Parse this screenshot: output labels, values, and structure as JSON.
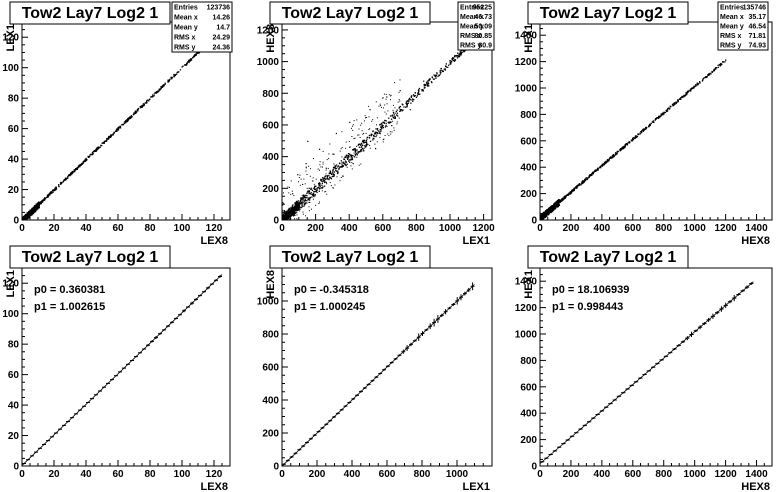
{
  "chart_data": [
    {
      "type": "scatter",
      "title": "Tow2 Lay7 Log2 1",
      "xlabel": "LEX8",
      "ylabel": "LEX1",
      "xlim": [
        0,
        130
      ],
      "ylim": [
        0,
        130
      ],
      "xticks": [
        0,
        20,
        40,
        60,
        80,
        100,
        120
      ],
      "yticks": [
        0,
        20,
        40,
        60,
        80,
        100,
        120
      ],
      "stats": [
        {
          "label": "Entries",
          "value": "123736"
        },
        {
          "label": "Mean x",
          "value": "14.26"
        },
        {
          "label": "Mean y",
          "value": "14.7"
        },
        {
          "label": "RMS x",
          "value": "24.29"
        },
        {
          "label": "RMS y",
          "value": "24.36"
        }
      ],
      "line": {
        "x_start": 0,
        "x_end": 125,
        "slope": 1.0026,
        "intercept": 0.36
      },
      "outliers": []
    },
    {
      "type": "scatter",
      "title": "Tow2 Lay7 Log2 1",
      "xlabel": "LEX1",
      "ylabel": "HEX8",
      "xlim": [
        0,
        1250
      ],
      "ylim": [
        0,
        1250
      ],
      "xticks": [
        0,
        200,
        400,
        600,
        800,
        1000,
        1200
      ],
      "yticks": [
        0,
        200,
        400,
        600,
        800,
        1000,
        1200
      ],
      "stats": [
        {
          "label": "Entries",
          "value": "95225"
        },
        {
          "label": "Mean x",
          "value": "46.73"
        },
        {
          "label": "Mean y",
          "value": "50.09"
        },
        {
          "label": "RMS x",
          "value": "80.85"
        },
        {
          "label": "RMS y",
          "value": "80.9"
        }
      ],
      "line": {
        "x_start": 0,
        "x_end": 1100,
        "slope": 1.0,
        "intercept": 0
      },
      "outliers": [
        [
          150,
          500
        ],
        [
          220,
          450
        ],
        [
          320,
          550
        ],
        [
          400,
          620
        ],
        [
          520,
          700
        ],
        [
          620,
          780
        ],
        [
          700,
          820
        ],
        [
          480,
          440
        ],
        [
          260,
          330
        ],
        [
          140,
          360
        ],
        [
          90,
          290
        ],
        [
          360,
          280
        ],
        [
          560,
          540
        ],
        [
          760,
          700
        ],
        [
          300,
          420
        ],
        [
          180,
          250
        ],
        [
          60,
          170
        ],
        [
          420,
          360
        ],
        [
          650,
          600
        ],
        [
          840,
          880
        ]
      ]
    },
    {
      "type": "scatter",
      "title": "Tow2 Lay7 Log2 1",
      "xlabel": "HEX8",
      "ylabel": "HEX1",
      "xlim": [
        0,
        1500
      ],
      "ylim": [
        0,
        1500
      ],
      "xticks": [
        0,
        200,
        400,
        600,
        800,
        1000,
        1200,
        1400
      ],
      "yticks": [
        0,
        200,
        400,
        600,
        800,
        1000,
        1200,
        1400
      ],
      "stats": [
        {
          "label": "Entries",
          "value": "135746"
        },
        {
          "label": "Mean x",
          "value": "35.17"
        },
        {
          "label": "Mean y",
          "value": "46.54"
        },
        {
          "label": "RMS x",
          "value": "71.81"
        },
        {
          "label": "RMS y",
          "value": "74.93"
        }
      ],
      "line": {
        "x_start": 0,
        "x_end": 1200,
        "slope": 1.0,
        "intercept": 20
      },
      "outliers": []
    },
    {
      "type": "line",
      "title": "Tow2 Lay7 Log2 1",
      "xlabel": "LEX8",
      "ylabel": "LEX1",
      "xlim": [
        0,
        130
      ],
      "ylim": [
        0,
        130
      ],
      "xticks": [
        0,
        20,
        40,
        60,
        80,
        100,
        120
      ],
      "yticks": [
        0,
        20,
        40,
        60,
        80,
        100,
        120
      ],
      "fit": {
        "p0_label": "p0 = 0.360381",
        "p1_label": "p1 = 1.002615",
        "p0": 0.360381,
        "p1": 1.002615
      },
      "profile": {
        "x_start": 0,
        "x_end": 125
      }
    },
    {
      "type": "line",
      "title": "Tow2 Lay7 Log2 1",
      "xlabel": "LEX1",
      "ylabel": "HEX8",
      "xlim": [
        0,
        1200
      ],
      "ylim": [
        0,
        1200
      ],
      "xticks": [
        0,
        200,
        400,
        600,
        800,
        1000
      ],
      "yticks": [
        0,
        200,
        400,
        600,
        800,
        1000
      ],
      "fit": {
        "p0_label": "p0 = -0.345318",
        "p1_label": "p1 = 1.000245",
        "p0": -0.345318,
        "p1": 1.000245
      },
      "profile": {
        "x_start": 0,
        "x_end": 1100
      }
    },
    {
      "type": "line",
      "title": "Tow2 Lay7 Log2 1",
      "xlabel": "HEX8",
      "ylabel": "HEX1",
      "xlim": [
        0,
        1500
      ],
      "ylim": [
        0,
        1500
      ],
      "xticks": [
        0,
        200,
        400,
        600,
        800,
        1000,
        1200,
        1400
      ],
      "yticks": [
        0,
        200,
        400,
        600,
        800,
        1000,
        1200,
        1400
      ],
      "fit": {
        "p0_label": "p0 = 18.106939",
        "p1_label": "p1 = 0.998443",
        "p0": 18.106939,
        "p1": 0.998443
      },
      "profile": {
        "x_start": 0,
        "x_end": 1380
      }
    }
  ]
}
